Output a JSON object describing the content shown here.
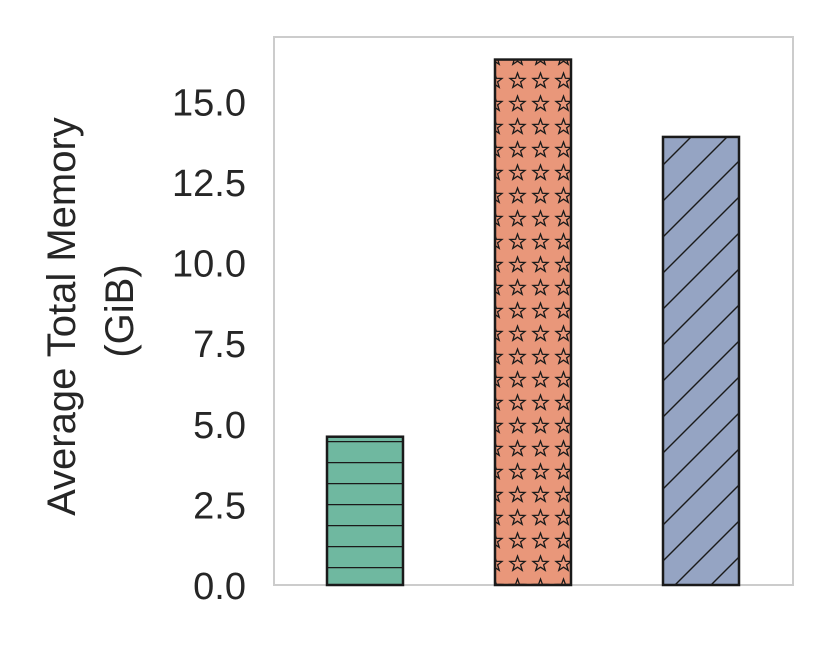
{
  "chart_data": {
    "type": "bar",
    "categories": [
      "",
      "",
      ""
    ],
    "values": [
      4.6,
      16.3,
      13.9
    ],
    "ylabel_lines": [
      "Average Total Memory",
      "(GiB)"
    ],
    "xlabel": "",
    "ylim": [
      0,
      17
    ],
    "yticks": [
      0.0,
      2.5,
      5.0,
      7.5,
      10.0,
      12.5,
      15.0
    ],
    "ytick_labels": [
      "0.0",
      "2.5",
      "5.0",
      "7.5",
      "10.0",
      "12.5",
      "15.0"
    ],
    "grid": false,
    "colors": [
      "#6fb8a0",
      "#e9977a",
      "#95a4c3"
    ],
    "hatches": [
      "horizontal",
      "stars",
      "diagonal"
    ]
  }
}
